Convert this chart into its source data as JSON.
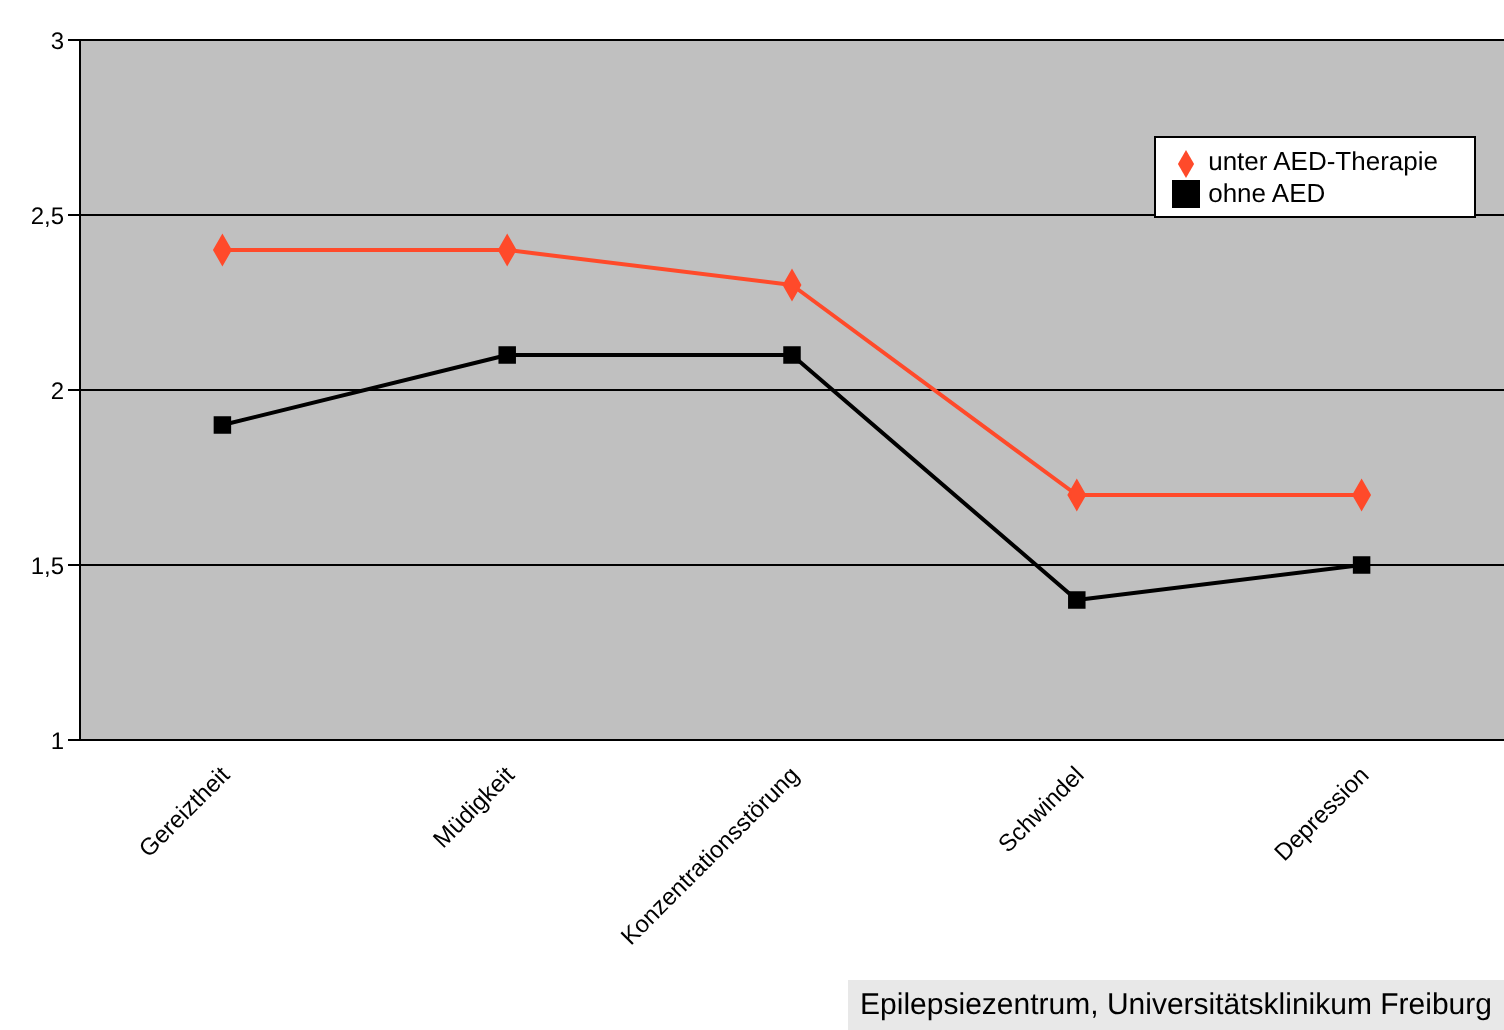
{
  "chart_data": {
    "type": "line",
    "categories": [
      "Gereiztheit",
      "Müdigkeit",
      "Konzentrationsstörung",
      "Schwindel",
      "Depression"
    ],
    "series": [
      {
        "name": "unter AED-Therapie",
        "color": "#ff4a2a",
        "marker": "diamond",
        "values": [
          2.4,
          2.4,
          2.3,
          1.7,
          1.7
        ]
      },
      {
        "name": "ohne AED",
        "color": "#000000",
        "marker": "square",
        "values": [
          1.9,
          2.1,
          2.1,
          1.4,
          1.5
        ]
      }
    ],
    "ylim": [
      1,
      3
    ],
    "yticks": [
      1,
      {
        "value": 1.5,
        "label": "1,5"
      },
      2,
      {
        "value": 2.5,
        "label": "2,5"
      },
      3
    ],
    "grid": "y",
    "legend": "top right",
    "annotations": [
      "Epilepsiezentrum, Universitätsklinikum Freiburg"
    ]
  }
}
